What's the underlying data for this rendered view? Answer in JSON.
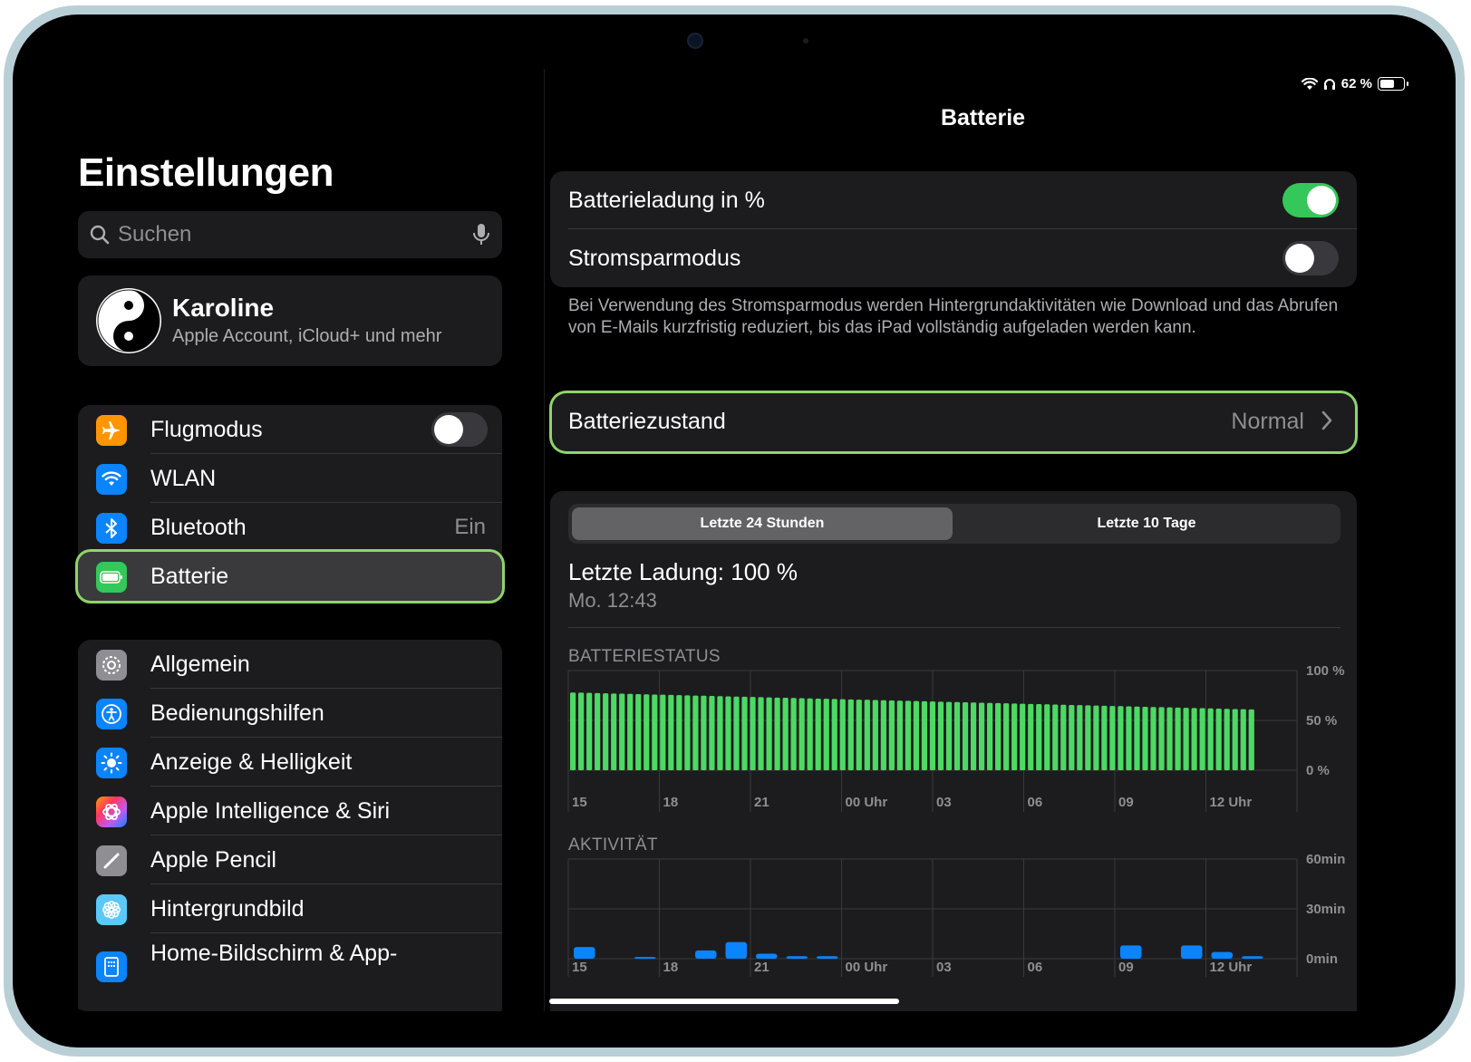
{
  "status_bar": {
    "battery_text": "62 %",
    "battery_level": 0.62
  },
  "sidebar": {
    "title": "Einstellungen",
    "search_placeholder": "Suchen",
    "account": {
      "name": "Karoline",
      "subtitle": "Apple Account, iCloud+ und mehr"
    },
    "group1": [
      {
        "label": "Flugmodus",
        "icon": "airplane-icon",
        "color": "#ff9500",
        "toggle": false
      },
      {
        "label": "WLAN",
        "icon": "wifi-icon",
        "color": "#0a84ff"
      },
      {
        "label": "Bluetooth",
        "icon": "bluetooth-icon",
        "color": "#0a84ff",
        "value": "Ein"
      },
      {
        "label": "Batterie",
        "icon": "battery-icon",
        "color": "#34c759",
        "selected": true
      }
    ],
    "group2": [
      {
        "label": "Allgemein",
        "icon": "gear-icon",
        "color": "#8e8e93"
      },
      {
        "label": "Bedienungshilfen",
        "icon": "accessibility-icon",
        "color": "#0a84ff"
      },
      {
        "label": "Anzeige & Helligkeit",
        "icon": "sun-icon",
        "color": "#0a84ff"
      },
      {
        "label": "Apple Intelligence & Siri",
        "icon": "siri-icon",
        "color": "#ff6b9a"
      },
      {
        "label": "Apple Pencil",
        "icon": "pencil-icon",
        "color": "#8e8e93"
      },
      {
        "label": "Hintergrundbild",
        "icon": "wallpaper-icon",
        "color": "#5ac8fa"
      },
      {
        "label": "Home-Bildschirm & App-",
        "icon": "home-screen-icon",
        "color": "#0a84ff"
      }
    ]
  },
  "detail": {
    "title": "Batterie",
    "battery_percent_label": "Batterieladung in %",
    "battery_percent_on": true,
    "low_power_label": "Stromsparmodus",
    "low_power_on": false,
    "footnote": "Bei Verwendung des Stromsparmodus werden Hintergrundaktivitäten wie Download und das Abrufen von E-Mails kurzfristig reduziert, bis das iPad vollständig aufgeladen werden kann.",
    "health_label": "Batteriezustand",
    "health_value": "Normal",
    "tabs": [
      "Letzte 24 Stunden",
      "Letzte 10 Tage"
    ],
    "last_charge": "Letzte Ladung: 100 %",
    "last_charge_time": "Mo. 12:43",
    "status_heading": "BATTERIESTATUS",
    "activity_heading": "AKTIVITÄT"
  },
  "chart_data": [
    {
      "type": "bar",
      "title": "BATTERIESTATUS",
      "x_ticks": [
        "15",
        "18",
        "21",
        "00 Uhr",
        "03",
        "06",
        "09",
        "12 Uhr"
      ],
      "y_ticks": [
        "100 %",
        "50 %",
        "0 %"
      ],
      "ylim": [
        0,
        100
      ],
      "bar_count": 84,
      "values_start": 78,
      "values_end": 61,
      "color": "#4cd964"
    },
    {
      "type": "bar",
      "title": "AKTIVITÄT",
      "x_ticks": [
        "15",
        "18",
        "21",
        "00 Uhr",
        "03",
        "06",
        "09",
        "12 Uhr"
      ],
      "y_ticks": [
        "60min",
        "30min",
        "0min"
      ],
      "ylim": [
        0,
        60
      ],
      "values": [
        7,
        0,
        1,
        0,
        5,
        10,
        3,
        1.5,
        1.5,
        0,
        0,
        0,
        0,
        0,
        0,
        0,
        0,
        0,
        8,
        0,
        8,
        4,
        1.5
      ],
      "color": "#0a84ff"
    }
  ]
}
